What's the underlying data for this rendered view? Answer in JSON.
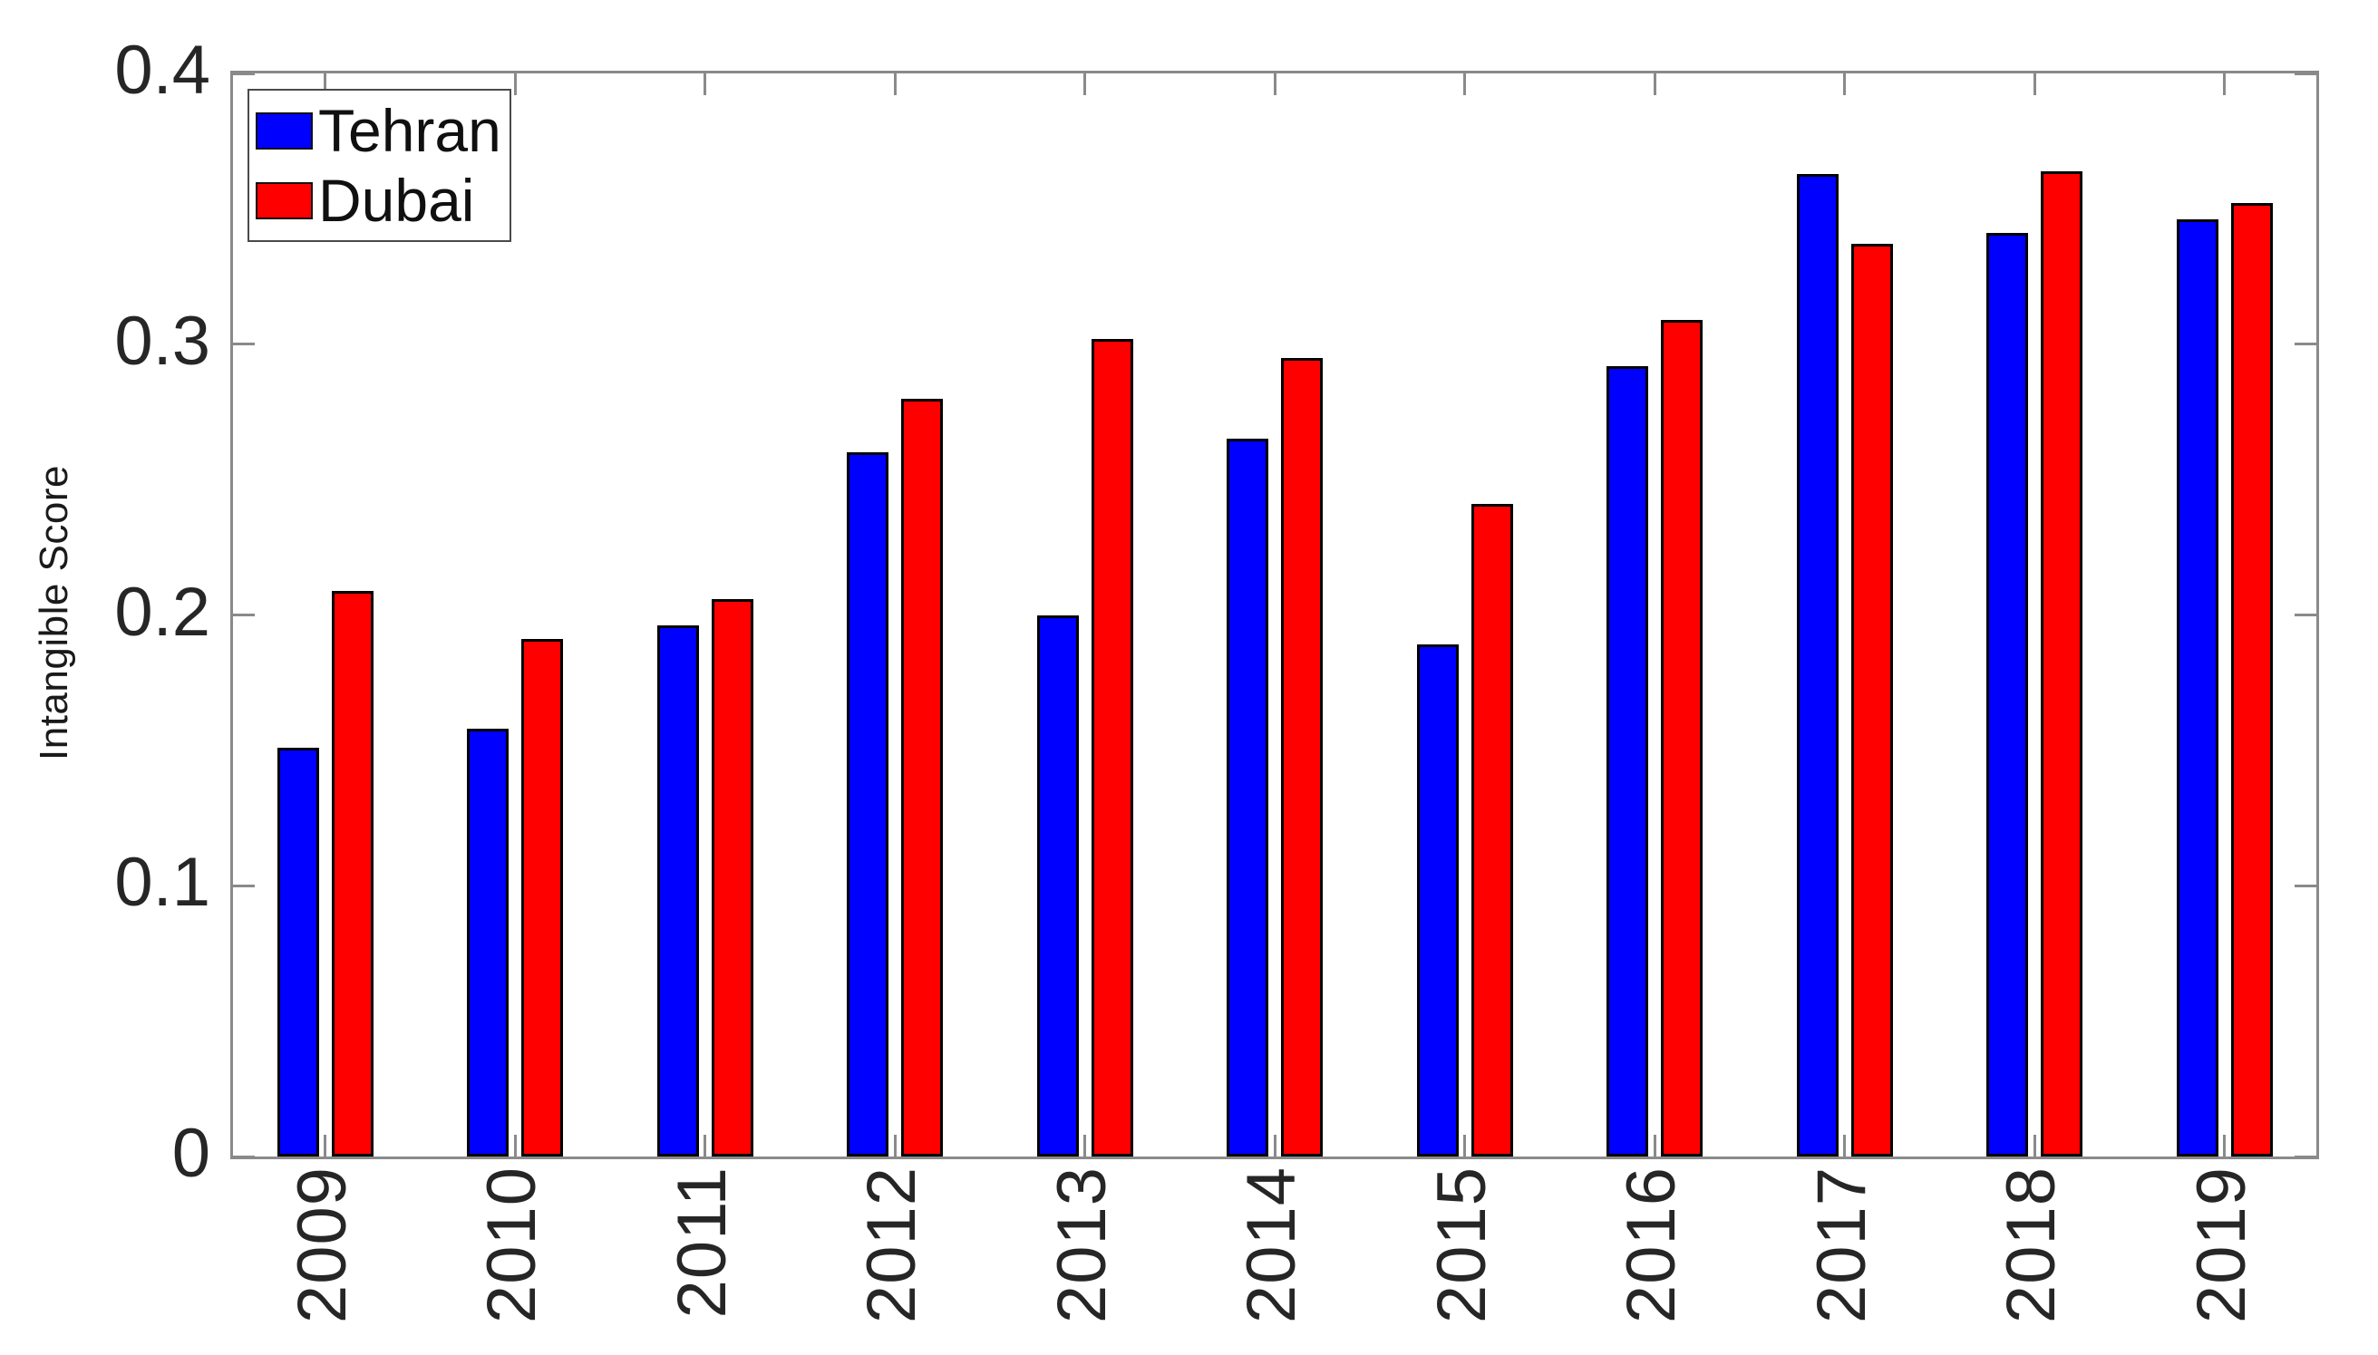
{
  "chart_data": {
    "type": "bar",
    "ylabel": "Intangible Score",
    "xlabel": "",
    "categories": [
      "2009",
      "2010",
      "2011",
      "2012",
      "2013",
      "2014",
      "2015",
      "2016",
      "2017",
      "2018",
      "2019"
    ],
    "series": [
      {
        "name": "Tehran",
        "color": "#0000ff",
        "values": [
          0.151,
          0.158,
          0.196,
          0.26,
          0.2,
          0.265,
          0.189,
          0.292,
          0.363,
          0.341,
          0.346
        ]
      },
      {
        "name": "Dubai",
        "color": "#ff0000",
        "values": [
          0.209,
          0.191,
          0.206,
          0.28,
          0.302,
          0.295,
          0.241,
          0.309,
          0.337,
          0.364,
          0.352
        ]
      }
    ],
    "ylim": [
      0,
      0.4
    ],
    "yticks": [
      "0",
      "0.1",
      "0.2",
      "0.3",
      "0.4"
    ],
    "ytick_values": [
      0,
      0.1,
      0.2,
      0.3,
      0.4
    ],
    "grid": "off",
    "legend_position": "top-left",
    "bar_edge_color": "#000000",
    "axis_color": "#8a8a8a",
    "text_color": "#262626",
    "x_tick_label_rotation_deg": 90
  }
}
